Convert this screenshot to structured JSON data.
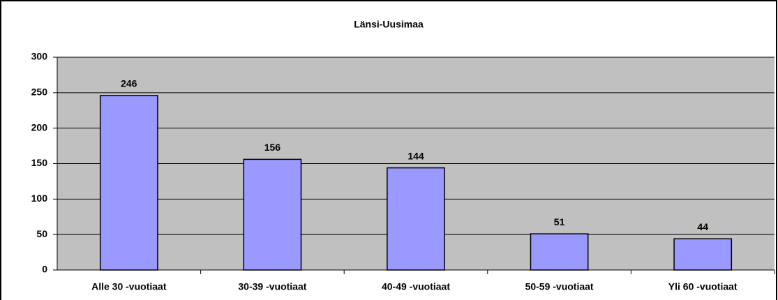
{
  "chart_data": {
    "type": "bar",
    "title": "Länsi-Uusimaa",
    "categories": [
      "Alle 30 -vuotiaat",
      "30-39 -vuotiaat",
      "40-49 -vuotiaat",
      "50-59 -vuotiaat",
      "Yli 60 -vuotiaat"
    ],
    "values": [
      246,
      156,
      144,
      51,
      44
    ],
    "color": "#9999ff",
    "ylim": [
      0,
      300
    ],
    "yticks": [
      0,
      50,
      100,
      150,
      200,
      250,
      300
    ],
    "grid": true
  }
}
